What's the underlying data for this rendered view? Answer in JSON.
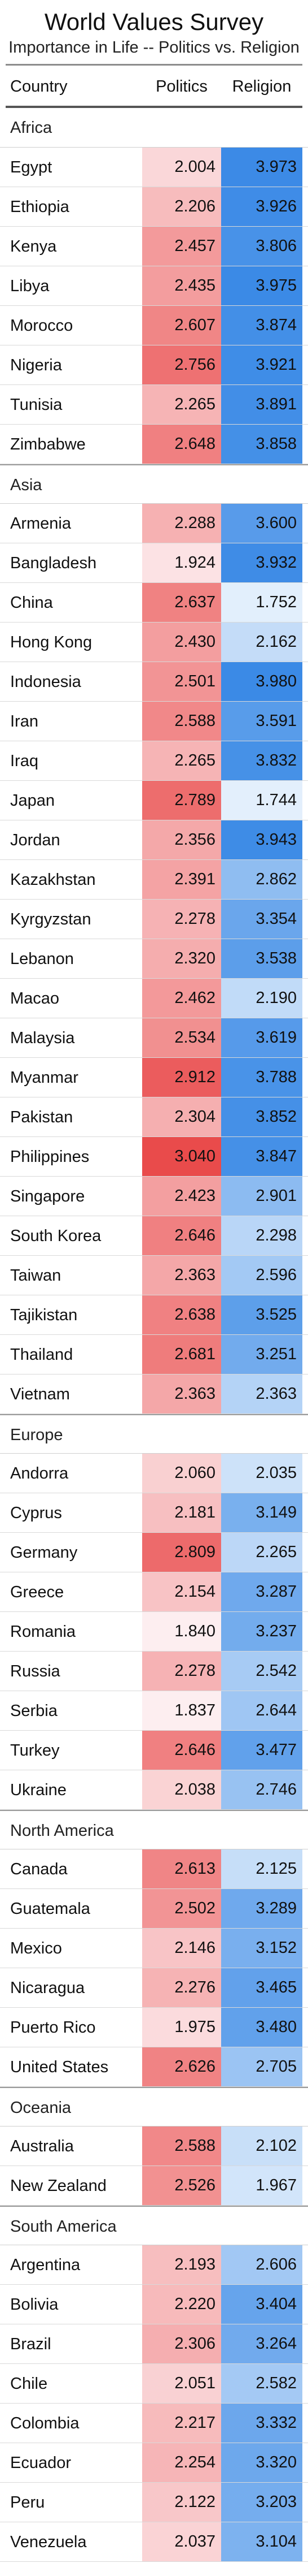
{
  "chart_data": {
    "type": "table",
    "title": "World Values Survey",
    "subtitle": "Importance in Life -- Politics vs. Religion",
    "columns": [
      "Country",
      "Politics",
      "Religion"
    ],
    "color_scale": {
      "politics": {
        "low": "#fdeef0",
        "high": "#e94b4b",
        "min": 1.837,
        "max": 3.04
      },
      "religion": {
        "low": "#e3effc",
        "high": "#3b8ae6",
        "min": 1.744,
        "max": 3.98
      }
    },
    "groups": [
      {
        "name": "Africa",
        "rows": [
          {
            "country": "Egypt",
            "politics": 2.004,
            "religion": 3.973
          },
          {
            "country": "Ethiopia",
            "politics": 2.206,
            "religion": 3.926
          },
          {
            "country": "Kenya",
            "politics": 2.457,
            "religion": 3.806
          },
          {
            "country": "Libya",
            "politics": 2.435,
            "religion": 3.975
          },
          {
            "country": "Morocco",
            "politics": 2.607,
            "religion": 3.874
          },
          {
            "country": "Nigeria",
            "politics": 2.756,
            "religion": 3.921
          },
          {
            "country": "Tunisia",
            "politics": 2.265,
            "religion": 3.891
          },
          {
            "country": "Zimbabwe",
            "politics": 2.648,
            "religion": 3.858
          }
        ]
      },
      {
        "name": "Asia",
        "rows": [
          {
            "country": "Armenia",
            "politics": 2.288,
            "religion": 3.6
          },
          {
            "country": "Bangladesh",
            "politics": 1.924,
            "religion": 3.932
          },
          {
            "country": "China",
            "politics": 2.637,
            "religion": 1.752
          },
          {
            "country": "Hong Kong",
            "politics": 2.43,
            "religion": 2.162
          },
          {
            "country": "Indonesia",
            "politics": 2.501,
            "religion": 3.98
          },
          {
            "country": "Iran",
            "politics": 2.588,
            "religion": 3.591
          },
          {
            "country": "Iraq",
            "politics": 2.265,
            "religion": 3.832
          },
          {
            "country": "Japan",
            "politics": 2.789,
            "religion": 1.744
          },
          {
            "country": "Jordan",
            "politics": 2.356,
            "religion": 3.943
          },
          {
            "country": "Kazakhstan",
            "politics": 2.391,
            "religion": 2.862
          },
          {
            "country": "Kyrgyzstan",
            "politics": 2.278,
            "religion": 3.354
          },
          {
            "country": "Lebanon",
            "politics": 2.32,
            "religion": 3.538
          },
          {
            "country": "Macao",
            "politics": 2.462,
            "religion": 2.19
          },
          {
            "country": "Malaysia",
            "politics": 2.534,
            "religion": 3.619
          },
          {
            "country": "Myanmar",
            "politics": 2.912,
            "religion": 3.788
          },
          {
            "country": "Pakistan",
            "politics": 2.304,
            "religion": 3.852
          },
          {
            "country": "Philippines",
            "politics": 3.04,
            "religion": 3.847
          },
          {
            "country": "Singapore",
            "politics": 2.423,
            "religion": 2.901
          },
          {
            "country": "South Korea",
            "politics": 2.646,
            "religion": 2.298
          },
          {
            "country": "Taiwan",
            "politics": 2.363,
            "religion": 2.596
          },
          {
            "country": "Tajikistan",
            "politics": 2.638,
            "religion": 3.525
          },
          {
            "country": "Thailand",
            "politics": 2.681,
            "religion": 3.251
          },
          {
            "country": "Vietnam",
            "politics": 2.363,
            "religion": 2.363
          }
        ]
      },
      {
        "name": "Europe",
        "rows": [
          {
            "country": "Andorra",
            "politics": 2.06,
            "religion": 2.035
          },
          {
            "country": "Cyprus",
            "politics": 2.181,
            "religion": 3.149
          },
          {
            "country": "Germany",
            "politics": 2.809,
            "religion": 2.265
          },
          {
            "country": "Greece",
            "politics": 2.154,
            "religion": 3.287
          },
          {
            "country": "Romania",
            "politics": 1.84,
            "religion": 3.237
          },
          {
            "country": "Russia",
            "politics": 2.278,
            "religion": 2.542
          },
          {
            "country": "Serbia",
            "politics": 1.837,
            "religion": 2.644
          },
          {
            "country": "Turkey",
            "politics": 2.646,
            "religion": 3.477
          },
          {
            "country": "Ukraine",
            "politics": 2.038,
            "religion": 2.746
          }
        ]
      },
      {
        "name": "North America",
        "rows": [
          {
            "country": "Canada",
            "politics": 2.613,
            "religion": 2.125
          },
          {
            "country": "Guatemala",
            "politics": 2.502,
            "religion": 3.289
          },
          {
            "country": "Mexico",
            "politics": 2.146,
            "religion": 3.152
          },
          {
            "country": "Nicaragua",
            "politics": 2.276,
            "religion": 3.465
          },
          {
            "country": "Puerto Rico",
            "politics": 1.975,
            "religion": 3.48
          },
          {
            "country": "United States",
            "politics": 2.626,
            "religion": 2.705
          }
        ]
      },
      {
        "name": "Oceania",
        "rows": [
          {
            "country": "Australia",
            "politics": 2.588,
            "religion": 2.102
          },
          {
            "country": "New Zealand",
            "politics": 2.526,
            "religion": 1.967
          }
        ]
      },
      {
        "name": "South America",
        "rows": [
          {
            "country": "Argentina",
            "politics": 2.193,
            "religion": 2.606
          },
          {
            "country": "Bolivia",
            "politics": 2.22,
            "religion": 3.404
          },
          {
            "country": "Brazil",
            "politics": 2.306,
            "religion": 3.264
          },
          {
            "country": "Chile",
            "politics": 2.051,
            "religion": 2.582
          },
          {
            "country": "Colombia",
            "politics": 2.217,
            "religion": 3.332
          },
          {
            "country": "Ecuador",
            "politics": 2.254,
            "religion": 3.32
          },
          {
            "country": "Peru",
            "politics": 2.122,
            "religion": 3.203
          },
          {
            "country": "Venezuela",
            "politics": 2.037,
            "religion": 3.104
          }
        ]
      }
    ]
  }
}
